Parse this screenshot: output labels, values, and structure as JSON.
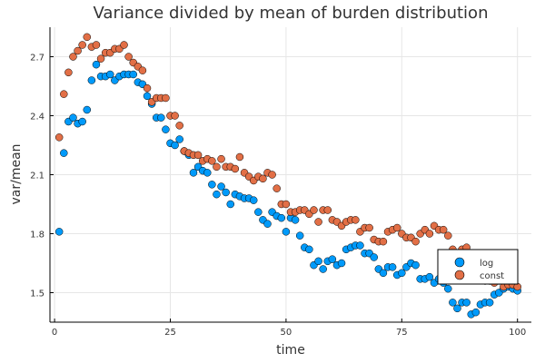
{
  "chart_data": {
    "type": "scatter",
    "title": "Variance divided by mean of burden distribution",
    "xlabel": "time",
    "ylabel": "var/mean",
    "xlim": [
      -1,
      103
    ],
    "ylim": [
      1.35,
      2.85
    ],
    "xticks": [
      0,
      25,
      50,
      75,
      100
    ],
    "yticks": [
      1.5,
      1.8,
      2.1,
      2.4,
      2.7
    ],
    "xtick_labels": [
      "0",
      "25",
      "50",
      "75",
      "100"
    ],
    "ytick_labels": [
      "1.5",
      "1.8",
      "2.1",
      "2.4",
      "2.7"
    ],
    "grid": true,
    "legend_position": "bottom-right",
    "series": [
      {
        "name": "log",
        "color": "#009AFA",
        "x": [
          1,
          2,
          3,
          4,
          5,
          6,
          7,
          8,
          9,
          10,
          11,
          12,
          13,
          14,
          15,
          16,
          17,
          18,
          19,
          20,
          21,
          22,
          23,
          24,
          25,
          26,
          27,
          28,
          29,
          30,
          31,
          32,
          33,
          34,
          35,
          36,
          37,
          38,
          39,
          40,
          41,
          42,
          43,
          44,
          45,
          46,
          47,
          48,
          49,
          50,
          51,
          52,
          53,
          54,
          55,
          56,
          57,
          58,
          59,
          60,
          61,
          62,
          63,
          64,
          65,
          66,
          67,
          68,
          69,
          70,
          71,
          72,
          73,
          74,
          75,
          76,
          77,
          78,
          79,
          80,
          81,
          82,
          83,
          84,
          85,
          86,
          87,
          88,
          89,
          90,
          91,
          92,
          93,
          94,
          95,
          96,
          97,
          98,
          99,
          100
        ],
        "y": [
          1.81,
          2.21,
          2.37,
          2.39,
          2.36,
          2.37,
          2.43,
          2.58,
          2.66,
          2.6,
          2.6,
          2.61,
          2.58,
          2.6,
          2.61,
          2.61,
          2.61,
          2.57,
          2.56,
          2.5,
          2.46,
          2.39,
          2.39,
          2.33,
          2.26,
          2.25,
          2.28,
          2.22,
          2.2,
          2.11,
          2.14,
          2.12,
          2.11,
          2.05,
          2.0,
          2.04,
          2.01,
          1.95,
          2.0,
          1.99,
          1.98,
          1.98,
          1.97,
          1.91,
          1.87,
          1.85,
          1.91,
          1.89,
          1.88,
          1.81,
          1.88,
          1.87,
          1.79,
          1.73,
          1.72,
          1.64,
          1.66,
          1.62,
          1.66,
          1.67,
          1.64,
          1.65,
          1.72,
          1.73,
          1.74,
          1.74,
          1.7,
          1.7,
          1.68,
          1.62,
          1.6,
          1.63,
          1.63,
          1.59,
          1.6,
          1.63,
          1.65,
          1.64,
          1.57,
          1.57,
          1.58,
          1.55,
          1.57,
          1.55,
          1.52,
          1.45,
          1.42,
          1.45,
          1.45,
          1.39,
          1.4,
          1.44,
          1.45,
          1.45,
          1.49,
          1.5,
          1.52,
          1.53,
          1.52,
          1.51
        ]
      },
      {
        "name": "const",
        "color": "#E26F46",
        "x": [
          1,
          2,
          3,
          4,
          5,
          6,
          7,
          8,
          9,
          10,
          11,
          12,
          13,
          14,
          15,
          16,
          17,
          18,
          19,
          20,
          21,
          22,
          23,
          24,
          25,
          26,
          27,
          28,
          29,
          30,
          31,
          32,
          33,
          34,
          35,
          36,
          37,
          38,
          39,
          40,
          41,
          42,
          43,
          44,
          45,
          46,
          47,
          48,
          49,
          50,
          51,
          52,
          53,
          54,
          55,
          56,
          57,
          58,
          59,
          60,
          61,
          62,
          63,
          64,
          65,
          66,
          67,
          68,
          69,
          70,
          71,
          72,
          73,
          74,
          75,
          76,
          77,
          78,
          79,
          80,
          81,
          82,
          83,
          84,
          85,
          86,
          87,
          88,
          89,
          90,
          91,
          92,
          93,
          94,
          95,
          96,
          97,
          98,
          99,
          100
        ],
        "y": [
          2.29,
          2.51,
          2.62,
          2.7,
          2.73,
          2.76,
          2.8,
          2.75,
          2.76,
          2.69,
          2.72,
          2.72,
          2.74,
          2.74,
          2.76,
          2.7,
          2.67,
          2.65,
          2.63,
          2.54,
          2.47,
          2.49,
          2.49,
          2.49,
          2.4,
          2.4,
          2.35,
          2.22,
          2.21,
          2.2,
          2.2,
          2.17,
          2.18,
          2.17,
          2.14,
          2.18,
          2.14,
          2.14,
          2.13,
          2.19,
          2.11,
          2.09,
          2.07,
          2.09,
          2.08,
          2.11,
          2.1,
          2.03,
          1.95,
          1.95,
          1.91,
          1.91,
          1.92,
          1.92,
          1.9,
          1.92,
          1.86,
          1.92,
          1.92,
          1.87,
          1.86,
          1.84,
          1.86,
          1.87,
          1.87,
          1.81,
          1.83,
          1.83,
          1.77,
          1.76,
          1.76,
          1.81,
          1.82,
          1.83,
          1.8,
          1.78,
          1.78,
          1.76,
          1.8,
          1.82,
          1.8,
          1.84,
          1.82,
          1.82,
          1.79,
          1.72,
          1.7,
          1.72,
          1.73,
          1.65,
          1.6,
          1.59,
          1.56,
          1.56,
          1.55,
          1.56,
          1.53,
          1.54,
          1.54,
          1.53
        ]
      }
    ]
  }
}
